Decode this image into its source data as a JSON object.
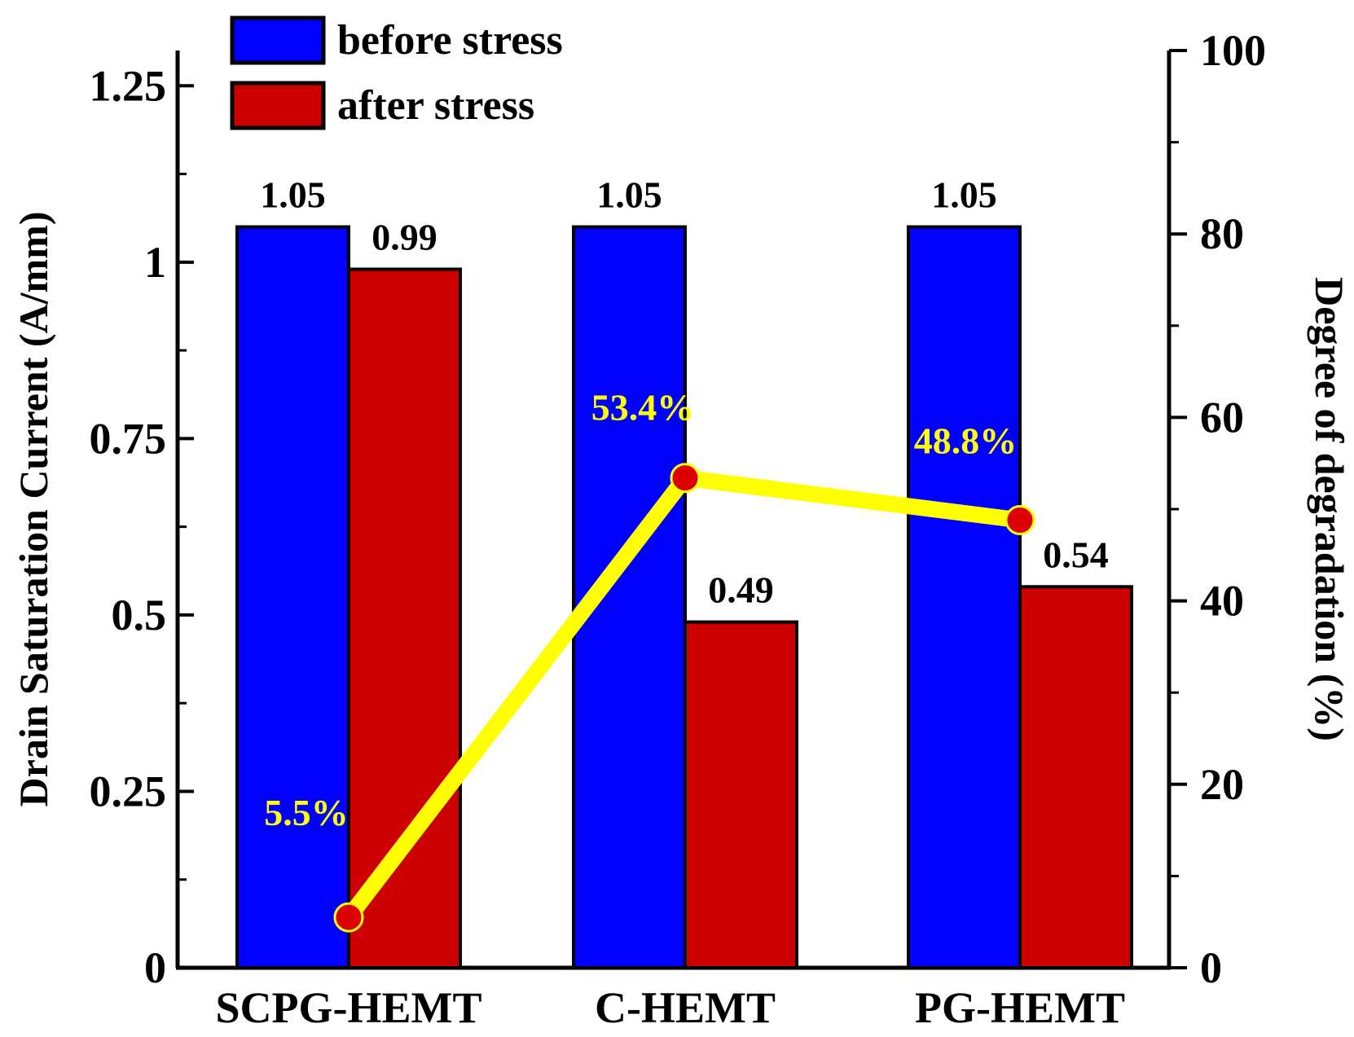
{
  "chart_data": {
    "type": "bar",
    "categories": [
      "SCPG-HEMT",
      "C-HEMT",
      "PG-HEMT"
    ],
    "series": [
      {
        "name": "before stress",
        "values": [
          1.05,
          1.05,
          1.05
        ],
        "labels": [
          "1.05",
          "1.05",
          "1.05"
        ],
        "color": "#0000ff"
      },
      {
        "name": "after stress",
        "values": [
          0.99,
          0.49,
          0.54
        ],
        "labels": [
          "0.99",
          "0.49",
          "0.54"
        ],
        "color": "#cc0000"
      }
    ],
    "line_series": {
      "name": "Degree of degradation",
      "axis": "right",
      "values": [
        5.5,
        53.4,
        48.8
      ],
      "labels": [
        "5.5%",
        "53.4%",
        "48.8%"
      ],
      "line_color": "#ffff00",
      "marker_color": "#dd0000"
    },
    "ylabel": "Drain Saturation Current (A/mm)",
    "y2label": "Degree of degradation (%)",
    "ylim": [
      0,
      1.3
    ],
    "y2lim": [
      0,
      100
    ],
    "yticks": [
      0,
      0.25,
      0.5,
      0.75,
      1,
      1.25
    ],
    "ytick_labels": [
      "0",
      "0.25",
      "0.5",
      "0.75",
      "1",
      "1.25"
    ],
    "y2ticks": [
      0,
      20,
      40,
      60,
      80,
      100
    ],
    "y2tick_labels": [
      "0",
      "20",
      "40",
      "60",
      "80",
      "100"
    ],
    "legend_position": "top-left",
    "grid": false
  }
}
